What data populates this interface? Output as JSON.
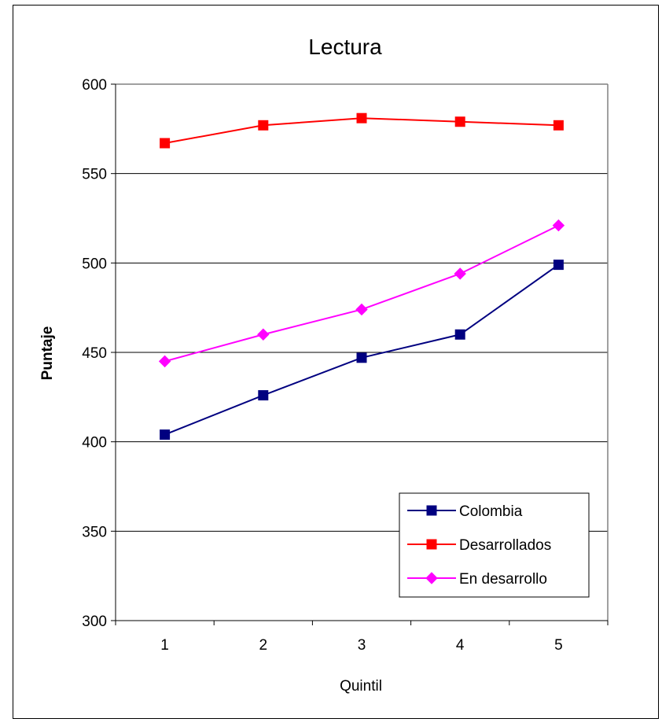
{
  "chart_data": {
    "type": "line",
    "title": "Lectura",
    "xlabel": "Quintil",
    "ylabel": "Puntaje",
    "categories": [
      "1",
      "2",
      "3",
      "4",
      "5"
    ],
    "ylim": [
      300,
      600
    ],
    "yticks": [
      300,
      350,
      400,
      450,
      500,
      550,
      600
    ],
    "grid": true,
    "legend_position": "bottom-right",
    "series": [
      {
        "name": "Colombia",
        "values": [
          404,
          426,
          447,
          460,
          499
        ],
        "color": "#000080",
        "marker": "square"
      },
      {
        "name": "Desarrollados",
        "values": [
          567,
          577,
          581,
          579,
          577
        ],
        "color": "#ff0000",
        "marker": "square"
      },
      {
        "name": "En desarrollo",
        "values": [
          445,
          460,
          474,
          494,
          521
        ],
        "color": "#ff00ff",
        "marker": "diamond"
      }
    ]
  }
}
